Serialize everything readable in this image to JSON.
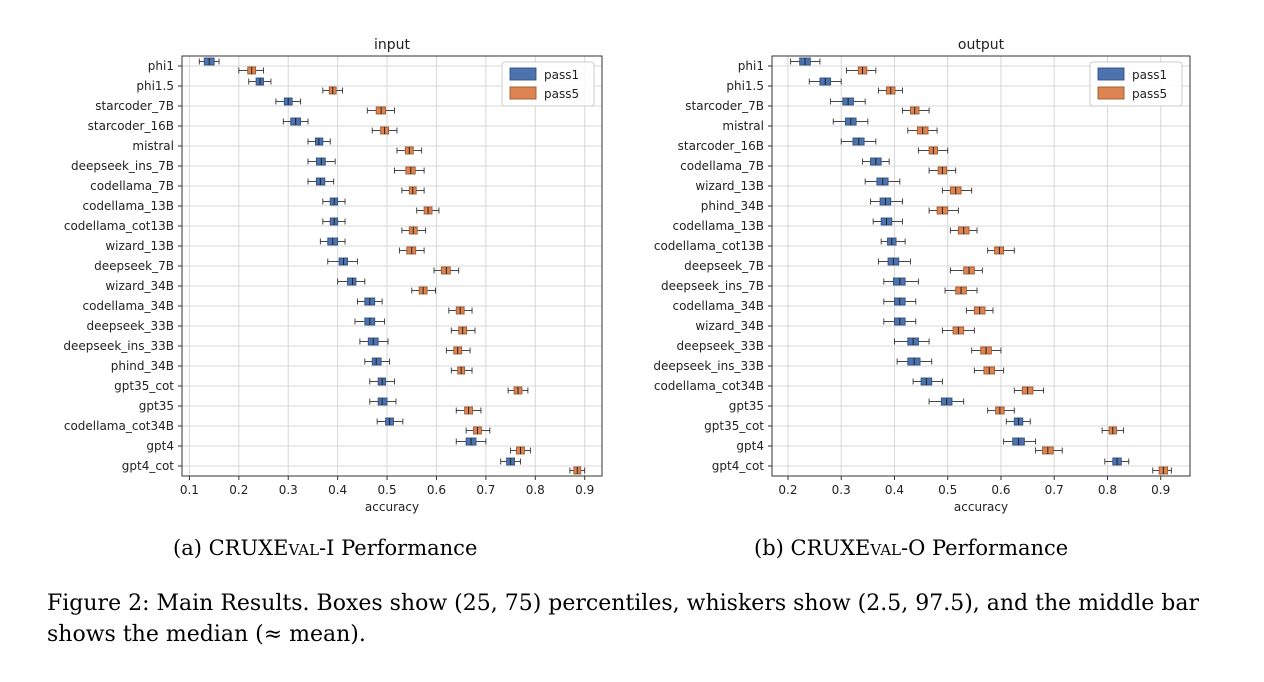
{
  "colors": {
    "pass1": "#4c72b0",
    "pass1_dark": "#33517f",
    "pass5": "#dd8452",
    "pass5_dark": "#9c5a2f",
    "grid": "#d8d8d8"
  },
  "chart_data": [
    {
      "type": "box",
      "title": "input",
      "xlabel": "accuracy",
      "xlim": [
        0.085,
        0.935
      ],
      "xticks": [
        "0.1",
        "0.2",
        "0.3",
        "0.4",
        "0.5",
        "0.6",
        "0.7",
        "0.8",
        "0.9"
      ],
      "grid": true,
      "legend_position": "top-right",
      "series_names": [
        "pass1",
        "pass5"
      ],
      "categories": [
        "phi1",
        "phi1.5",
        "starcoder_7B",
        "starcoder_16B",
        "mistral",
        "deepseek_ins_7B",
        "codellama_7B",
        "codellama_13B",
        "codellama_cot13B",
        "wizard_13B",
        "deepseek_7B",
        "wizard_34B",
        "codellama_34B",
        "deepseek_33B",
        "deepseek_ins_33B",
        "phind_34B",
        "gpt35_cot",
        "gpt35",
        "codellama_cot34B",
        "gpt4",
        "gpt4_cot"
      ],
      "pass1": [
        [
          0.12,
          0.13,
          0.14,
          0.15,
          0.16
        ],
        [
          0.22,
          0.235,
          0.243,
          0.25,
          0.265
        ],
        [
          0.275,
          0.292,
          0.3,
          0.308,
          0.325
        ],
        [
          0.29,
          0.305,
          0.315,
          0.325,
          0.34
        ],
        [
          0.34,
          0.355,
          0.362,
          0.37,
          0.385
        ],
        [
          0.34,
          0.357,
          0.367,
          0.375,
          0.395
        ],
        [
          0.34,
          0.357,
          0.365,
          0.374,
          0.392
        ],
        [
          0.37,
          0.385,
          0.393,
          0.4,
          0.415
        ],
        [
          0.37,
          0.385,
          0.393,
          0.4,
          0.415
        ],
        [
          0.365,
          0.38,
          0.39,
          0.4,
          0.415
        ],
        [
          0.38,
          0.403,
          0.412,
          0.42,
          0.44
        ],
        [
          0.4,
          0.42,
          0.43,
          0.437,
          0.455
        ],
        [
          0.44,
          0.455,
          0.465,
          0.475,
          0.49
        ],
        [
          0.435,
          0.455,
          0.465,
          0.475,
          0.495
        ],
        [
          0.445,
          0.462,
          0.472,
          0.482,
          0.502
        ],
        [
          0.455,
          0.47,
          0.478,
          0.488,
          0.505
        ],
        [
          0.465,
          0.482,
          0.49,
          0.497,
          0.515
        ],
        [
          0.465,
          0.482,
          0.49,
          0.5,
          0.518
        ],
        [
          0.48,
          0.497,
          0.505,
          0.513,
          0.532
        ],
        [
          0.64,
          0.66,
          0.67,
          0.68,
          0.7
        ],
        [
          0.73,
          0.742,
          0.75,
          0.758,
          0.77
        ]
      ],
      "pass5": [
        [
          0.2,
          0.218,
          0.226,
          0.234,
          0.25
        ],
        [
          0.37,
          0.383,
          0.39,
          0.397,
          0.41
        ],
        [
          0.46,
          0.478,
          0.488,
          0.497,
          0.515
        ],
        [
          0.47,
          0.487,
          0.495,
          0.503,
          0.52
        ],
        [
          0.52,
          0.537,
          0.545,
          0.553,
          0.57
        ],
        [
          0.515,
          0.538,
          0.548,
          0.557,
          0.575
        ],
        [
          0.53,
          0.545,
          0.552,
          0.559,
          0.575
        ],
        [
          0.56,
          0.575,
          0.583,
          0.591,
          0.605
        ],
        [
          0.53,
          0.545,
          0.553,
          0.561,
          0.578
        ],
        [
          0.525,
          0.54,
          0.55,
          0.558,
          0.575
        ],
        [
          0.595,
          0.61,
          0.62,
          0.628,
          0.645
        ],
        [
          0.55,
          0.565,
          0.573,
          0.581,
          0.598
        ],
        [
          0.625,
          0.64,
          0.648,
          0.656,
          0.672
        ],
        [
          0.63,
          0.645,
          0.653,
          0.661,
          0.678
        ],
        [
          0.62,
          0.635,
          0.643,
          0.651,
          0.668
        ],
        [
          0.63,
          0.643,
          0.65,
          0.657,
          0.672
        ],
        [
          0.745,
          0.757,
          0.765,
          0.773,
          0.785
        ],
        [
          0.64,
          0.657,
          0.665,
          0.673,
          0.69
        ],
        [
          0.66,
          0.675,
          0.683,
          0.691,
          0.708
        ],
        [
          0.75,
          0.762,
          0.77,
          0.778,
          0.79
        ],
        [
          0.87,
          0.878,
          0.885,
          0.892,
          0.9
        ]
      ]
    },
    {
      "type": "box",
      "title": "output",
      "xlabel": "accuracy",
      "xlim": [
        0.17,
        0.955
      ],
      "xticks": [
        "0.2",
        "0.3",
        "0.4",
        "0.5",
        "0.6",
        "0.7",
        "0.8",
        "0.9"
      ],
      "grid": true,
      "legend_position": "top-right",
      "series_names": [
        "pass1",
        "pass5"
      ],
      "categories": [
        "phi1",
        "phi1.5",
        "starcoder_7B",
        "mistral",
        "starcoder_16B",
        "codellama_7B",
        "wizard_13B",
        "phind_34B",
        "codellama_13B",
        "codellama_cot13B",
        "deepseek_7B",
        "deepseek_ins_7B",
        "codellama_34B",
        "wizard_34B",
        "deepseek_33B",
        "deepseek_ins_33B",
        "codellama_cot34B",
        "gpt35",
        "gpt35_cot",
        "gpt4",
        "gpt4_cot"
      ],
      "pass1": [
        [
          0.205,
          0.222,
          0.232,
          0.242,
          0.26
        ],
        [
          0.24,
          0.26,
          0.27,
          0.28,
          0.3
        ],
        [
          0.28,
          0.303,
          0.313,
          0.323,
          0.345
        ],
        [
          0.285,
          0.308,
          0.318,
          0.328,
          0.35
        ],
        [
          0.3,
          0.322,
          0.333,
          0.343,
          0.365
        ],
        [
          0.34,
          0.355,
          0.365,
          0.375,
          0.39
        ],
        [
          0.345,
          0.367,
          0.378,
          0.388,
          0.41
        ],
        [
          0.355,
          0.373,
          0.383,
          0.393,
          0.415
        ],
        [
          0.36,
          0.375,
          0.385,
          0.395,
          0.415
        ],
        [
          0.375,
          0.387,
          0.395,
          0.403,
          0.42
        ],
        [
          0.37,
          0.388,
          0.398,
          0.408,
          0.43
        ],
        [
          0.38,
          0.398,
          0.41,
          0.42,
          0.445
        ],
        [
          0.38,
          0.4,
          0.41,
          0.42,
          0.44
        ],
        [
          0.38,
          0.4,
          0.41,
          0.42,
          0.44
        ],
        [
          0.4,
          0.425,
          0.435,
          0.445,
          0.465
        ],
        [
          0.405,
          0.425,
          0.437,
          0.448,
          0.47
        ],
        [
          0.435,
          0.45,
          0.46,
          0.47,
          0.49
        ],
        [
          0.465,
          0.488,
          0.498,
          0.508,
          0.53
        ],
        [
          0.61,
          0.625,
          0.633,
          0.641,
          0.655
        ],
        [
          0.605,
          0.622,
          0.633,
          0.644,
          0.665
        ],
        [
          0.795,
          0.81,
          0.818,
          0.826,
          0.84
        ]
      ],
      "pass5": [
        [
          0.31,
          0.332,
          0.34,
          0.348,
          0.365
        ],
        [
          0.37,
          0.385,
          0.393,
          0.401,
          0.415
        ],
        [
          0.415,
          0.43,
          0.438,
          0.446,
          0.465
        ],
        [
          0.425,
          0.443,
          0.453,
          0.463,
          0.48
        ],
        [
          0.445,
          0.465,
          0.473,
          0.481,
          0.5
        ],
        [
          0.465,
          0.482,
          0.49,
          0.498,
          0.515
        ],
        [
          0.49,
          0.505,
          0.515,
          0.525,
          0.545
        ],
        [
          0.465,
          0.48,
          0.49,
          0.5,
          0.52
        ],
        [
          0.505,
          0.52,
          0.53,
          0.54,
          0.555
        ],
        [
          0.575,
          0.588,
          0.597,
          0.605,
          0.625
        ],
        [
          0.505,
          0.53,
          0.54,
          0.55,
          0.565
        ],
        [
          0.495,
          0.515,
          0.525,
          0.535,
          0.555
        ],
        [
          0.535,
          0.55,
          0.56,
          0.57,
          0.585
        ],
        [
          0.49,
          0.51,
          0.52,
          0.53,
          0.55
        ],
        [
          0.545,
          0.562,
          0.572,
          0.582,
          0.6
        ],
        [
          0.55,
          0.568,
          0.578,
          0.588,
          0.605
        ],
        [
          0.625,
          0.64,
          0.65,
          0.66,
          0.68
        ],
        [
          0.575,
          0.59,
          0.598,
          0.606,
          0.625
        ],
        [
          0.79,
          0.803,
          0.81,
          0.817,
          0.83
        ],
        [
          0.665,
          0.678,
          0.688,
          0.698,
          0.715
        ],
        [
          0.885,
          0.897,
          0.905,
          0.913,
          0.92
        ]
      ]
    }
  ],
  "subcaptions": {
    "left_pre": "(a) CRUX",
    "left_sc": "Eval",
    "left_post": "-I Performance",
    "right_pre": "(b) CRUX",
    "right_sc": "Eval",
    "right_post": "-O Performance"
  },
  "figure_caption": "Figure 2: Main Results. Boxes show (25, 75) percentiles, whiskers show (2.5, 97.5), and the middle bar shows the median (≈ mean)."
}
